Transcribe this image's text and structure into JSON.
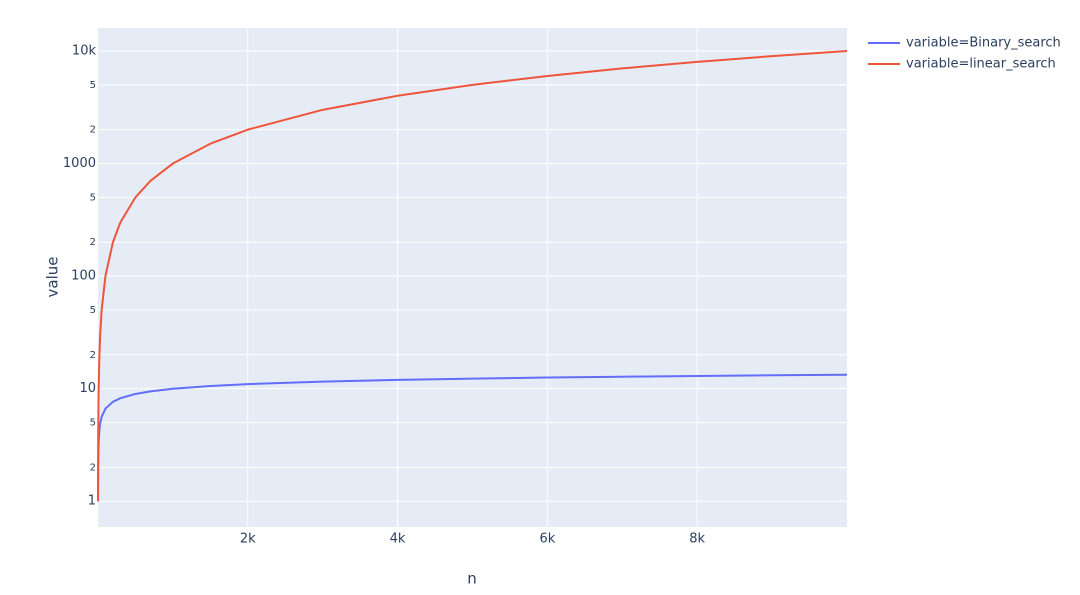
{
  "chart_data": {
    "type": "line",
    "x_label": "n",
    "y_label": "value",
    "x": [
      1,
      2,
      3,
      5,
      10,
      20,
      30,
      50,
      100,
      200,
      300,
      500,
      700,
      1000,
      1500,
      2000,
      3000,
      4000,
      5000,
      6000,
      7000,
      8000,
      9000,
      10000
    ],
    "series": [
      {
        "name": "variable=Binary_search",
        "color": "#636efa",
        "values": [
          null,
          1,
          1.58,
          2.32,
          3.32,
          4.32,
          4.91,
          5.64,
          6.64,
          7.64,
          8.23,
          8.97,
          9.45,
          9.97,
          10.55,
          10.97,
          11.55,
          11.97,
          12.29,
          12.55,
          12.77,
          12.97,
          13.14,
          13.29
        ]
      },
      {
        "name": "variable=linear_search",
        "color": "#ef553b",
        "values": [
          1,
          2,
          3,
          5,
          10,
          20,
          30,
          50,
          100,
          200,
          300,
          500,
          700,
          1000,
          1500,
          2000,
          3000,
          4000,
          5000,
          6000,
          7000,
          8000,
          9000,
          10000
        ]
      }
    ],
    "xlim": [
      1,
      10000
    ],
    "xticks": [
      {
        "value": 2000,
        "label": "2k"
      },
      {
        "value": 4000,
        "label": "4k"
      },
      {
        "value": 6000,
        "label": "6k"
      },
      {
        "value": 8000,
        "label": "8k"
      }
    ],
    "ylim": [
      0.59,
      16000
    ],
    "y_log": true,
    "yticks": [
      1,
      2,
      5,
      10,
      {
        "value": 20,
        "label": "2"
      },
      {
        "value": 50,
        "label": "5"
      },
      100,
      {
        "value": 200,
        "label": "2"
      },
      {
        "value": 500,
        "label": "5"
      },
      1000,
      {
        "value": 2000,
        "label": "2"
      },
      {
        "value": 5000,
        "label": "5"
      },
      {
        "value": 10000,
        "label": "10k"
      }
    ],
    "grid": true,
    "legend": "right"
  }
}
